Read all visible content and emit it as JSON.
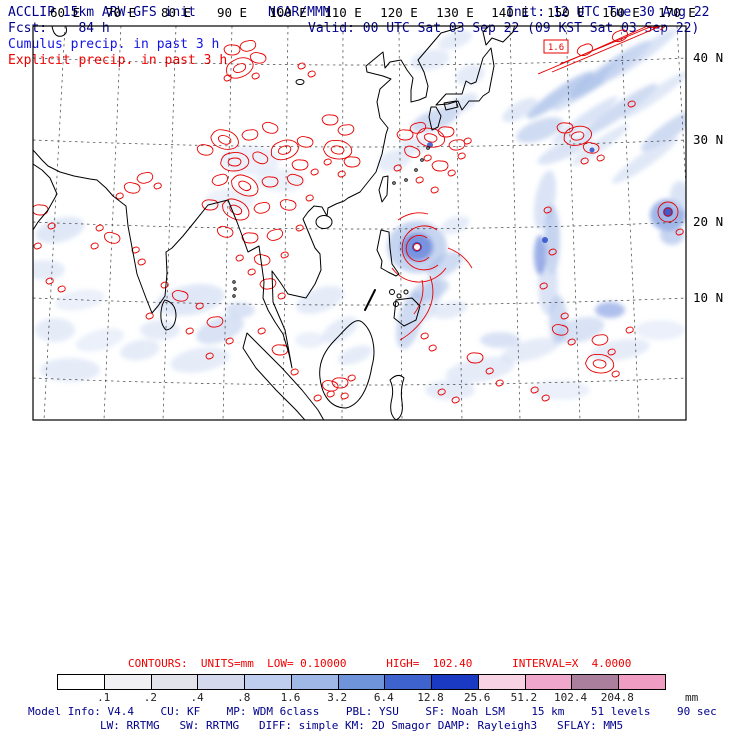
{
  "header": {
    "title": "ACCLIP 15km ARW-GFS init",
    "fcst": "Fcst:    84 h",
    "org": "NCAR/MMM",
    "init": "Init: 12 UTC Tue 30 Aug 22",
    "valid": "Valid: 00 UTC Sat 03 Sep 22 (09 KST Sat 03 Sep 22)",
    "legend_cumulus": "Cumulus precip. in past 3 h",
    "legend_explicit": "Explicit precip. in past 3 h"
  },
  "map": {
    "x_ticks": [
      "60 E",
      "70 E",
      "80 E",
      "90 E",
      "100 E",
      "110 E",
      "120 E",
      "130 E",
      "140 E",
      "150 E",
      "160 E",
      "170 E"
    ],
    "y_ticks": [
      "40 N",
      "30 N",
      "20 N",
      "10 N"
    ],
    "contour_label": "1.6"
  },
  "contours_info": "CONTOURS:  UNITS=mm  LOW= 0.10000      HIGH=  102.40      INTERVAL=X  4.0000",
  "colorbar": {
    "labels": [
      ".1",
      ".2",
      ".4",
      ".8",
      "1.6",
      "3.2",
      "6.4",
      "12.8",
      "25.6",
      "51.2",
      "102.4",
      "204.8"
    ],
    "unit": "mm",
    "colors": [
      "#ffffff",
      "#f1f1f3",
      "#e3e3ec",
      "#d4d9ee",
      "#bfcdee",
      "#9fb8e6",
      "#7094da",
      "#3f63ce",
      "#1a3ac4",
      "#f7d3e3",
      "#efa7cb",
      "#aa7f9e",
      "#ef9dc3"
    ]
  },
  "footer": {
    "line1": "Model Info: V4.4    CU: KF    MP: WDM 6class    PBL: YSU    SF: Noah LSM    15 km    51 levels    90 sec",
    "line2": "LW: RRTMG   SW: RRTMG   DIFF: simple KM: 2D Smagor DAMP: Rayleigh3   SFLAY: MM5"
  },
  "colors": {
    "header_navy": "#00008b",
    "cumulus_legend_blue": "#1414e6",
    "explicit_legend_red": "#f00000",
    "contour_red": "#e80000",
    "precip_shading_blue": "#9fb8e6",
    "coastline_black": "#000000"
  }
}
